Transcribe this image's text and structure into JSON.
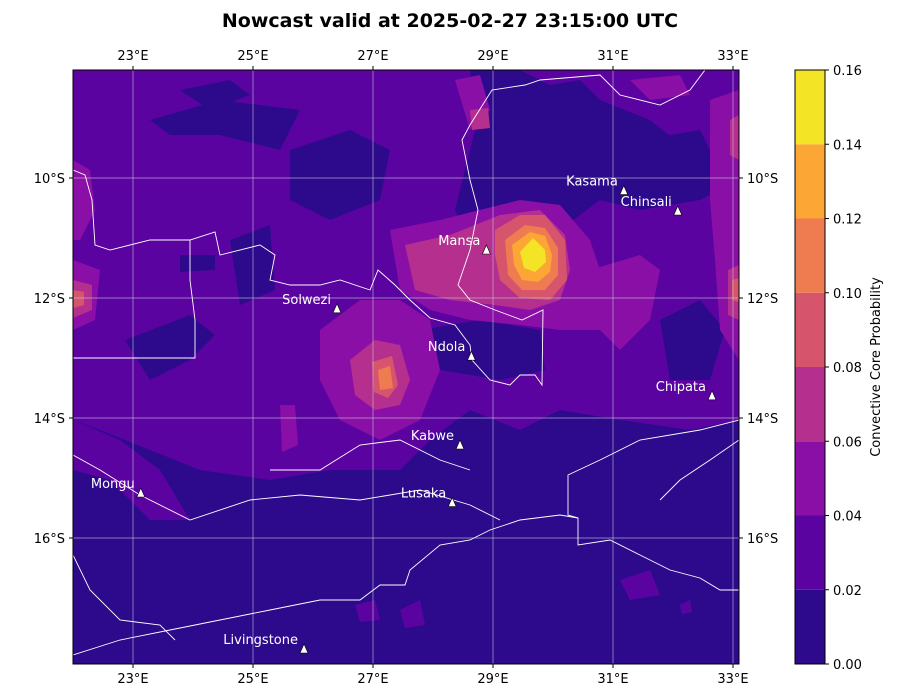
{
  "title": "Nowcast valid at 2025-02-27 23:15:00 UTC",
  "map": {
    "lon_ticks": [
      "23°E",
      "25°E",
      "27°E",
      "29°E",
      "31°E",
      "33°E"
    ],
    "lat_ticks": [
      "10°S",
      "12°S",
      "14°S",
      "16°S"
    ],
    "lon_values": [
      23,
      25,
      27,
      29,
      31,
      33
    ],
    "lat_values": [
      -10,
      -12,
      -14,
      -16
    ],
    "extent": {
      "lon_min": 22.0,
      "lon_max": 33.1,
      "lat_min": -18.1,
      "lat_max": -8.2
    }
  },
  "cities": [
    {
      "name": "Kasama",
      "lon": 31.18,
      "lat": -10.21,
      "label_side": "left"
    },
    {
      "name": "Chinsali",
      "lon": 32.08,
      "lat": -10.55,
      "label_side": "left"
    },
    {
      "name": "Mansa",
      "lon": 28.89,
      "lat": -11.2,
      "label_side": "left"
    },
    {
      "name": "Solwezi",
      "lon": 26.4,
      "lat": -12.18,
      "label_side": "left"
    },
    {
      "name": "Ndola",
      "lon": 28.64,
      "lat": -12.97,
      "label_side": "left"
    },
    {
      "name": "Chipata",
      "lon": 32.65,
      "lat": -13.63,
      "label_side": "left"
    },
    {
      "name": "Kabwe",
      "lon": 28.45,
      "lat": -14.45,
      "label_side": "left"
    },
    {
      "name": "Mongu",
      "lon": 23.13,
      "lat": -15.25,
      "label_side": "left"
    },
    {
      "name": "Lusaka",
      "lon": 28.32,
      "lat": -15.41,
      "label_side": "left"
    },
    {
      "name": "Livingstone",
      "lon": 25.85,
      "lat": -17.85,
      "label_side": "left"
    }
  ],
  "colorbar": {
    "label": "Convective Core Probability",
    "ticks": [
      "0.00",
      "0.02",
      "0.04",
      "0.06",
      "0.08",
      "0.10",
      "0.12",
      "0.14",
      "0.16"
    ],
    "levels": [
      0.0,
      0.02,
      0.04,
      0.06,
      0.08,
      0.1,
      0.12,
      0.14,
      0.16
    ],
    "colors": [
      "#2d0a8c",
      "#5b03a0",
      "#8a0fa6",
      "#b52f8f",
      "#d6556d",
      "#ef7b50",
      "#fca636",
      "#f3e426"
    ]
  }
}
